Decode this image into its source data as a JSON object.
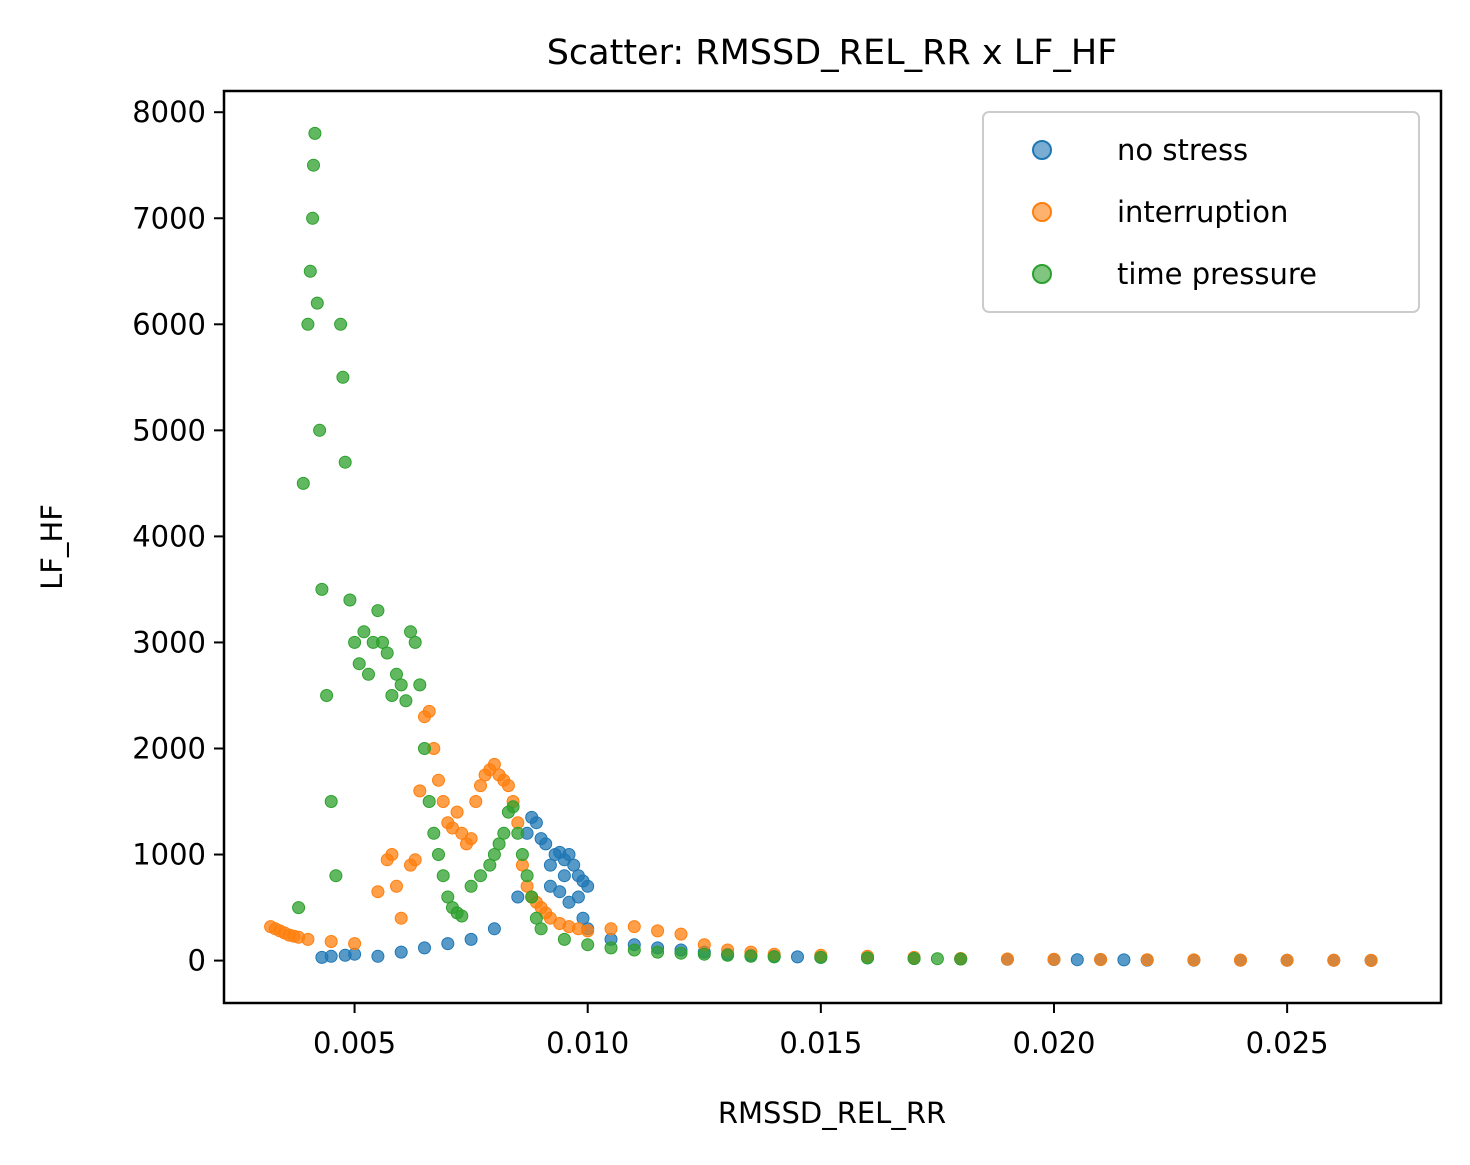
{
  "chart_data": {
    "type": "scatter",
    "title": "Scatter: RMSSD_REL_RR x LF_HF",
    "xlabel": "RMSSD_REL_RR",
    "ylabel": "LF_HF",
    "xlim": [
      0.0022,
      0.0283
    ],
    "ylim": [
      -400,
      8200
    ],
    "xticks": [
      0.005,
      0.01,
      0.015,
      0.02,
      0.025
    ],
    "xtick_labels": [
      "0.005",
      "0.010",
      "0.015",
      "0.020",
      "0.025"
    ],
    "yticks": [
      0,
      1000,
      2000,
      3000,
      4000,
      5000,
      6000,
      7000,
      8000
    ],
    "ytick_labels": [
      "0",
      "1000",
      "2000",
      "3000",
      "4000",
      "5000",
      "6000",
      "7000",
      "8000"
    ],
    "grid": false,
    "legend_position": "top-right",
    "series": [
      {
        "name": "no stress",
        "color": "#1f77b4",
        "points": [
          [
            0.0043,
            30
          ],
          [
            0.0045,
            40
          ],
          [
            0.0048,
            50
          ],
          [
            0.005,
            60
          ],
          [
            0.0055,
            40
          ],
          [
            0.006,
            80
          ],
          [
            0.0065,
            120
          ],
          [
            0.007,
            160
          ],
          [
            0.0075,
            200
          ],
          [
            0.008,
            300
          ],
          [
            0.0085,
            600
          ],
          [
            0.0087,
            1200
          ],
          [
            0.0088,
            1350
          ],
          [
            0.0089,
            1300
          ],
          [
            0.009,
            1150
          ],
          [
            0.0091,
            1100
          ],
          [
            0.0092,
            900
          ],
          [
            0.0093,
            1000
          ],
          [
            0.0094,
            1020
          ],
          [
            0.0095,
            950
          ],
          [
            0.0096,
            1000
          ],
          [
            0.0097,
            900
          ],
          [
            0.0098,
            800
          ],
          [
            0.0099,
            750
          ],
          [
            0.01,
            700
          ],
          [
            0.0098,
            600
          ],
          [
            0.0096,
            550
          ],
          [
            0.0094,
            650
          ],
          [
            0.0092,
            700
          ],
          [
            0.0095,
            800
          ],
          [
            0.0099,
            400
          ],
          [
            0.01,
            300
          ],
          [
            0.0105,
            200
          ],
          [
            0.011,
            150
          ],
          [
            0.0115,
            120
          ],
          [
            0.012,
            100
          ],
          [
            0.0125,
            80
          ],
          [
            0.013,
            60
          ],
          [
            0.0135,
            50
          ],
          [
            0.014,
            40
          ],
          [
            0.0145,
            35
          ],
          [
            0.015,
            30
          ],
          [
            0.016,
            25
          ],
          [
            0.017,
            20
          ],
          [
            0.018,
            15
          ],
          [
            0.019,
            12
          ],
          [
            0.02,
            10
          ],
          [
            0.0205,
            8
          ],
          [
            0.021,
            10
          ],
          [
            0.0215,
            6
          ],
          [
            0.022,
            5
          ],
          [
            0.023,
            4
          ],
          [
            0.024,
            4
          ],
          [
            0.025,
            3
          ],
          [
            0.026,
            3
          ],
          [
            0.0268,
            2
          ]
        ]
      },
      {
        "name": "interruption",
        "color": "#ff7f0e",
        "points": [
          [
            0.0032,
            320
          ],
          [
            0.0033,
            300
          ],
          [
            0.0034,
            280
          ],
          [
            0.0035,
            260
          ],
          [
            0.0036,
            240
          ],
          [
            0.0037,
            230
          ],
          [
            0.0038,
            220
          ],
          [
            0.004,
            200
          ],
          [
            0.0045,
            180
          ],
          [
            0.005,
            160
          ],
          [
            0.0055,
            650
          ],
          [
            0.0057,
            950
          ],
          [
            0.0058,
            1000
          ],
          [
            0.0059,
            700
          ],
          [
            0.006,
            400
          ],
          [
            0.0062,
            900
          ],
          [
            0.0063,
            950
          ],
          [
            0.0064,
            1600
          ],
          [
            0.0065,
            2300
          ],
          [
            0.0066,
            2350
          ],
          [
            0.0067,
            2000
          ],
          [
            0.0068,
            1700
          ],
          [
            0.0069,
            1500
          ],
          [
            0.007,
            1300
          ],
          [
            0.0071,
            1250
          ],
          [
            0.0072,
            1400
          ],
          [
            0.0073,
            1200
          ],
          [
            0.0074,
            1100
          ],
          [
            0.0075,
            1150
          ],
          [
            0.0076,
            1500
          ],
          [
            0.0077,
            1650
          ],
          [
            0.0078,
            1750
          ],
          [
            0.0079,
            1800
          ],
          [
            0.008,
            1850
          ],
          [
            0.0081,
            1750
          ],
          [
            0.0082,
            1700
          ],
          [
            0.0083,
            1650
          ],
          [
            0.0084,
            1500
          ],
          [
            0.0085,
            1300
          ],
          [
            0.0086,
            900
          ],
          [
            0.0087,
            700
          ],
          [
            0.0088,
            600
          ],
          [
            0.0089,
            550
          ],
          [
            0.009,
            500
          ],
          [
            0.0091,
            450
          ],
          [
            0.0092,
            400
          ],
          [
            0.0094,
            350
          ],
          [
            0.0096,
            320
          ],
          [
            0.0098,
            300
          ],
          [
            0.01,
            280
          ],
          [
            0.0105,
            300
          ],
          [
            0.011,
            320
          ],
          [
            0.0115,
            280
          ],
          [
            0.012,
            250
          ],
          [
            0.0125,
            150
          ],
          [
            0.013,
            100
          ],
          [
            0.0135,
            80
          ],
          [
            0.014,
            60
          ],
          [
            0.015,
            50
          ],
          [
            0.016,
            40
          ],
          [
            0.017,
            30
          ],
          [
            0.018,
            20
          ],
          [
            0.019,
            15
          ],
          [
            0.02,
            12
          ],
          [
            0.021,
            10
          ],
          [
            0.022,
            8
          ],
          [
            0.023,
            6
          ],
          [
            0.024,
            5
          ],
          [
            0.025,
            4
          ],
          [
            0.026,
            3
          ],
          [
            0.0268,
            2
          ]
        ]
      },
      {
        "name": "time pressure",
        "color": "#2ca02c",
        "points": [
          [
            0.0038,
            500
          ],
          [
            0.0039,
            4500
          ],
          [
            0.004,
            6000
          ],
          [
            0.00405,
            6500
          ],
          [
            0.0041,
            7000
          ],
          [
            0.00412,
            7500
          ],
          [
            0.00415,
            7800
          ],
          [
            0.0042,
            6200
          ],
          [
            0.00425,
            5000
          ],
          [
            0.0043,
            3500
          ],
          [
            0.0044,
            2500
          ],
          [
            0.0045,
            1500
          ],
          [
            0.0046,
            800
          ],
          [
            0.0047,
            6000
          ],
          [
            0.00475,
            5500
          ],
          [
            0.0048,
            4700
          ],
          [
            0.0049,
            3400
          ],
          [
            0.005,
            3000
          ],
          [
            0.0051,
            2800
          ],
          [
            0.0052,
            3100
          ],
          [
            0.0053,
            2700
          ],
          [
            0.0054,
            3000
          ],
          [
            0.0055,
            3300
          ],
          [
            0.0056,
            3000
          ],
          [
            0.0057,
            2900
          ],
          [
            0.0058,
            2500
          ],
          [
            0.0059,
            2700
          ],
          [
            0.006,
            2600
          ],
          [
            0.0061,
            2450
          ],
          [
            0.0062,
            3100
          ],
          [
            0.0063,
            3000
          ],
          [
            0.0064,
            2600
          ],
          [
            0.0065,
            2000
          ],
          [
            0.0066,
            1500
          ],
          [
            0.0067,
            1200
          ],
          [
            0.0068,
            1000
          ],
          [
            0.0069,
            800
          ],
          [
            0.007,
            600
          ],
          [
            0.0071,
            500
          ],
          [
            0.0072,
            450
          ],
          [
            0.0073,
            420
          ],
          [
            0.0075,
            700
          ],
          [
            0.0077,
            800
          ],
          [
            0.0079,
            900
          ],
          [
            0.008,
            1000
          ],
          [
            0.0081,
            1100
          ],
          [
            0.0082,
            1200
          ],
          [
            0.0083,
            1400
          ],
          [
            0.0084,
            1450
          ],
          [
            0.0085,
            1200
          ],
          [
            0.0086,
            1000
          ],
          [
            0.0087,
            800
          ],
          [
            0.0088,
            600
          ],
          [
            0.0089,
            400
          ],
          [
            0.009,
            300
          ],
          [
            0.0095,
            200
          ],
          [
            0.01,
            150
          ],
          [
            0.0105,
            120
          ],
          [
            0.011,
            100
          ],
          [
            0.0115,
            80
          ],
          [
            0.012,
            70
          ],
          [
            0.0125,
            60
          ],
          [
            0.013,
            50
          ],
          [
            0.0135,
            40
          ],
          [
            0.014,
            35
          ],
          [
            0.015,
            30
          ],
          [
            0.016,
            25
          ],
          [
            0.017,
            20
          ],
          [
            0.0175,
            18
          ],
          [
            0.018,
            15
          ]
        ]
      }
    ]
  }
}
